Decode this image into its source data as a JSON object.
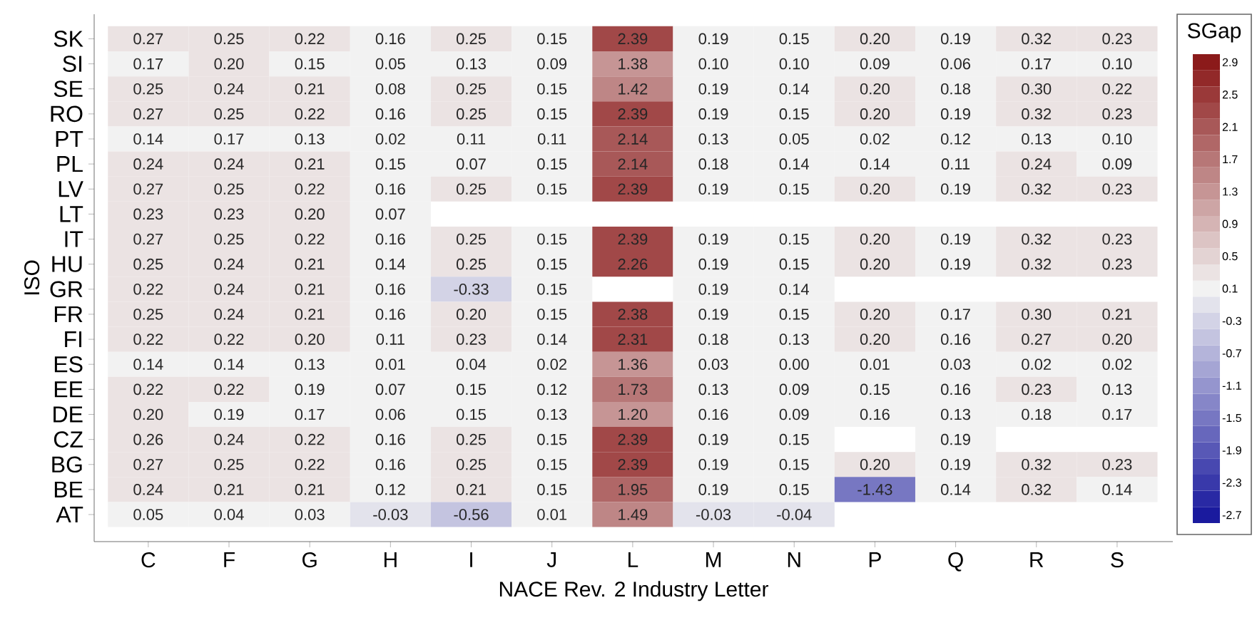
{
  "chart_data": {
    "type": "heatmap",
    "xlabel": "NACE Rev. 2 Industry Letter",
    "ylabel": "ISO",
    "clabel": "SGap",
    "categories": [
      "C",
      "F",
      "G",
      "H",
      "I",
      "J",
      "L",
      "M",
      "N",
      "P",
      "Q",
      "R",
      "S"
    ],
    "y_categories": [
      "SK",
      "SI",
      "SE",
      "RO",
      "PT",
      "PL",
      "LV",
      "LT",
      "IT",
      "HU",
      "GR",
      "FR",
      "FI",
      "ES",
      "EE",
      "DE",
      "CZ",
      "BG",
      "BE",
      "AT"
    ],
    "cells": [
      [
        0.27,
        0.25,
        0.22,
        0.16,
        0.25,
        0.15,
        2.39,
        0.19,
        0.15,
        0.2,
        0.19,
        0.32,
        0.23
      ],
      [
        0.17,
        0.2,
        0.15,
        0.05,
        0.13,
        0.09,
        1.38,
        0.1,
        0.1,
        0.09,
        0.06,
        0.17,
        0.1
      ],
      [
        0.25,
        0.24,
        0.21,
        0.08,
        0.25,
        0.15,
        1.42,
        0.19,
        0.14,
        0.2,
        0.18,
        0.3,
        0.22
      ],
      [
        0.27,
        0.25,
        0.22,
        0.16,
        0.25,
        0.15,
        2.39,
        0.19,
        0.15,
        0.2,
        0.19,
        0.32,
        0.23
      ],
      [
        0.14,
        0.17,
        0.13,
        0.02,
        0.11,
        0.11,
        2.14,
        0.13,
        0.05,
        0.02,
        0.12,
        0.13,
        0.1
      ],
      [
        0.24,
        0.24,
        0.21,
        0.15,
        0.07,
        0.15,
        2.14,
        0.18,
        0.14,
        0.14,
        0.11,
        0.24,
        0.09
      ],
      [
        0.27,
        0.25,
        0.22,
        0.16,
        0.25,
        0.15,
        2.39,
        0.19,
        0.15,
        0.2,
        0.19,
        0.32,
        0.23
      ],
      [
        0.23,
        0.23,
        0.2,
        0.07,
        null,
        null,
        null,
        null,
        null,
        null,
        null,
        null,
        null
      ],
      [
        0.27,
        0.25,
        0.22,
        0.16,
        0.25,
        0.15,
        2.39,
        0.19,
        0.15,
        0.2,
        0.19,
        0.32,
        0.23
      ],
      [
        0.25,
        0.24,
        0.21,
        0.14,
        0.25,
        0.15,
        2.26,
        0.19,
        0.15,
        0.2,
        0.19,
        0.32,
        0.23
      ],
      [
        0.22,
        0.24,
        0.21,
        0.16,
        -0.33,
        0.15,
        null,
        0.19,
        0.14,
        null,
        null,
        null,
        null
      ],
      [
        0.25,
        0.24,
        0.21,
        0.16,
        0.2,
        0.15,
        2.38,
        0.19,
        0.15,
        0.2,
        0.17,
        0.3,
        0.21
      ],
      [
        0.22,
        0.22,
        0.2,
        0.11,
        0.23,
        0.14,
        2.31,
        0.18,
        0.13,
        0.2,
        0.16,
        0.27,
        0.2
      ],
      [
        0.14,
        0.14,
        0.13,
        0.01,
        0.04,
        0.02,
        1.36,
        0.03,
        0.0,
        0.01,
        0.03,
        0.02,
        0.02
      ],
      [
        0.22,
        0.22,
        0.19,
        0.07,
        0.15,
        0.12,
        1.73,
        0.13,
        0.09,
        0.15,
        0.16,
        0.23,
        0.13
      ],
      [
        0.2,
        0.19,
        0.17,
        0.06,
        0.15,
        0.13,
        1.2,
        0.16,
        0.09,
        0.16,
        0.13,
        0.18,
        0.17
      ],
      [
        0.26,
        0.24,
        0.22,
        0.16,
        0.25,
        0.15,
        2.39,
        0.19,
        0.15,
        null,
        0.19,
        null,
        null
      ],
      [
        0.27,
        0.25,
        0.22,
        0.16,
        0.25,
        0.15,
        2.39,
        0.19,
        0.15,
        0.2,
        0.19,
        0.32,
        0.23
      ],
      [
        0.24,
        0.21,
        0.21,
        0.12,
        0.21,
        0.15,
        1.95,
        0.19,
        0.15,
        -1.43,
        0.14,
        0.32,
        0.14
      ],
      [
        0.05,
        0.04,
        0.03,
        -0.03,
        -0.56,
        0.01,
        1.49,
        -0.03,
        -0.04,
        null,
        null,
        null,
        null
      ]
    ],
    "cell_labels": [
      [
        "0.27",
        "0.25",
        "0.22",
        "0.16",
        "0.25",
        "0.15",
        "2.39",
        "0.19",
        "0.15",
        "0.20",
        "0.19",
        "0.32",
        "0.23"
      ],
      [
        "0.17",
        "0.20",
        "0.15",
        "0.05",
        "0.13",
        "0.09",
        "1.38",
        "0.10",
        "0.10",
        "0.09",
        "0.06",
        "0.17",
        "0.10"
      ],
      [
        "0.25",
        "0.24",
        "0.21",
        "0.08",
        "0.25",
        "0.15",
        "1.42",
        "0.19",
        "0.14",
        "0.20",
        "0.18",
        "0.30",
        "0.22"
      ],
      [
        "0.27",
        "0.25",
        "0.22",
        "0.16",
        "0.25",
        "0.15",
        "2.39",
        "0.19",
        "0.15",
        "0.20",
        "0.19",
        "0.32",
        "0.23"
      ],
      [
        "0.14",
        "0.17",
        "0.13",
        "0.02",
        "0.11",
        "0.11",
        "2.14",
        "0.13",
        "0.05",
        "0.02",
        "0.12",
        "0.13",
        "0.10"
      ],
      [
        "0.24",
        "0.24",
        "0.21",
        "0.15",
        "0.07",
        "0.15",
        "2.14",
        "0.18",
        "0.14",
        "0.14",
        "0.11",
        "0.24",
        "0.09"
      ],
      [
        "0.27",
        "0.25",
        "0.22",
        "0.16",
        "0.25",
        "0.15",
        "2.39",
        "0.19",
        "0.15",
        "0.20",
        "0.19",
        "0.32",
        "0.23"
      ],
      [
        "0.23",
        "0.23",
        "0.20",
        "0.07",
        null,
        null,
        null,
        null,
        null,
        null,
        null,
        null,
        null
      ],
      [
        "0.27",
        "0.25",
        "0.22",
        "0.16",
        "0.25",
        "0.15",
        "2.39",
        "0.19",
        "0.15",
        "0.20",
        "0.19",
        "0.32",
        "0.23"
      ],
      [
        "0.25",
        "0.24",
        "0.21",
        "0.14",
        "0.25",
        "0.15",
        "2.26",
        "0.19",
        "0.15",
        "0.20",
        "0.19",
        "0.32",
        "0.23"
      ],
      [
        "0.22",
        "0.24",
        "0.21",
        "0.16",
        "-0.33",
        "0.15",
        null,
        "0.19",
        "0.14",
        null,
        null,
        null,
        null
      ],
      [
        "0.25",
        "0.24",
        "0.21",
        "0.16",
        "0.20",
        "0.15",
        "2.38",
        "0.19",
        "0.15",
        "0.20",
        "0.17",
        "0.30",
        "0.21"
      ],
      [
        "0.22",
        "0.22",
        "0.20",
        "0.11",
        "0.23",
        "0.14",
        "2.31",
        "0.18",
        "0.13",
        "0.20",
        "0.16",
        "0.27",
        "0.20"
      ],
      [
        "0.14",
        "0.14",
        "0.13",
        "0.01",
        "0.04",
        "0.02",
        "1.36",
        "0.03",
        "0.00",
        "0.01",
        "0.03",
        "0.02",
        "0.02"
      ],
      [
        "0.22",
        "0.22",
        "0.19",
        "0.07",
        "0.15",
        "0.12",
        "1.73",
        "0.13",
        "0.09",
        "0.15",
        "0.16",
        "0.23",
        "0.13"
      ],
      [
        "0.20",
        "0.19",
        "0.17",
        "0.06",
        "0.15",
        "0.13",
        "1.20",
        "0.16",
        "0.09",
        "0.16",
        "0.13",
        "0.18",
        "0.17"
      ],
      [
        "0.26",
        "0.24",
        "0.22",
        "0.16",
        "0.25",
        "0.15",
        "2.39",
        "0.19",
        "0.15",
        null,
        "0.19",
        null,
        null
      ],
      [
        "0.27",
        "0.25",
        "0.22",
        "0.16",
        "0.25",
        "0.15",
        "2.39",
        "0.19",
        "0.15",
        "0.20",
        "0.19",
        "0.32",
        "0.23"
      ],
      [
        "0.24",
        "0.21",
        "0.21",
        "0.12",
        "0.21",
        "0.15",
        "1.95",
        "0.19",
        "0.15",
        "-1.43",
        "0.14",
        "0.32",
        "0.14"
      ],
      [
        "0.05",
        "0.04",
        "0.03",
        "-0.03",
        "-0.56",
        "0.01",
        "1.49",
        "-0.03",
        "-0.04",
        null,
        null,
        null,
        null
      ]
    ],
    "clim": [
      -2.8,
      3.0
    ],
    "cticks": [
      -2.7,
      -2.3,
      -1.9,
      -1.5,
      -1.1,
      -0.7,
      -0.3,
      0.1,
      0.5,
      0.9,
      1.3,
      1.7,
      2.1,
      2.5,
      2.9
    ]
  }
}
